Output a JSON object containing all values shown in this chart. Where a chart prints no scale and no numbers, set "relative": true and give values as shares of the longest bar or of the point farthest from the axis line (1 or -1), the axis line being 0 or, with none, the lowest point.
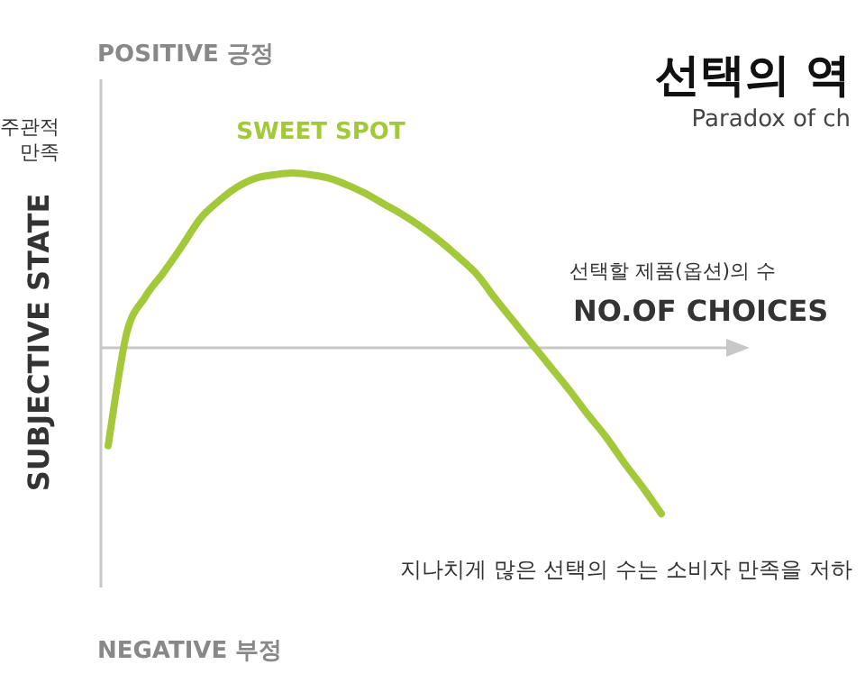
{
  "chart_data": {
    "type": "line",
    "title": "선택의 역",
    "subtitle": "Paradox of ch",
    "xlabel": "NO.OF CHOICES",
    "ylabel": "SUBJECTIVE STATE",
    "relative": true,
    "annotations": [
      "POSITIVE 긍정",
      "NEGATIVE 부정",
      "주관적 만족",
      "SWEET SPOT",
      "선택할 제품(옵션)의 수",
      "지나치게 많은 선택의 수는 소비자 만족을 저하"
    ],
    "categories": [
      null,
      null,
      null,
      null,
      null,
      null,
      null,
      null,
      null,
      null,
      null,
      null,
      null,
      null,
      null,
      null,
      null,
      null,
      null,
      null,
      null,
      null,
      null,
      null,
      null,
      null,
      null,
      null,
      null,
      null,
      null
    ],
    "series": [
      {
        "color": "#a3c93a",
        "values": [
          -0.56,
          0.08,
          0.29,
          0.43,
          0.58,
          0.74,
          0.84,
          0.92,
          0.97,
          0.99,
          1,
          0.99,
          0.97,
          0.93,
          0.88,
          0.82,
          0.76,
          0.69,
          0.61,
          0.52,
          0.42,
          0.28,
          0.15,
          0.02,
          -0.11,
          -0.24,
          -0.38,
          -0.51,
          -0.66,
          -0.8,
          -0.95
        ]
      }
    ]
  }
}
